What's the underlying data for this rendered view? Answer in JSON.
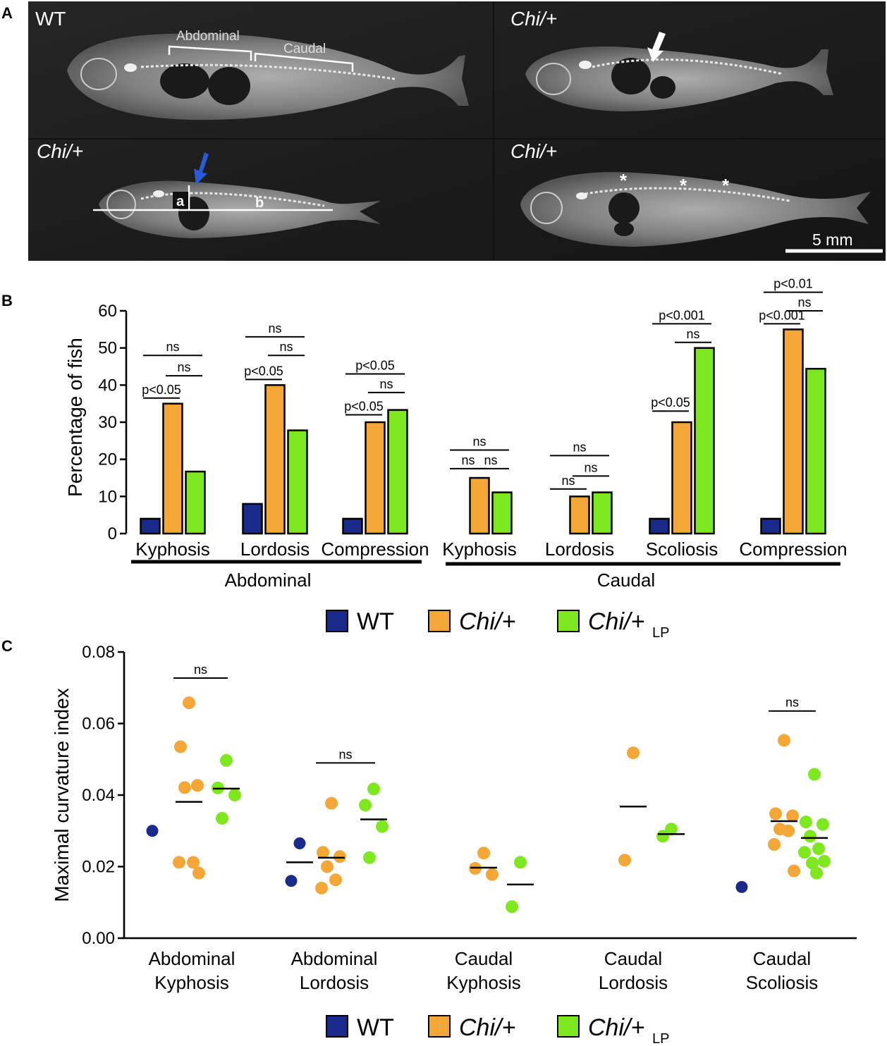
{
  "panels": {
    "a": "A",
    "b": "B",
    "c": "C"
  },
  "panel_a": {
    "images": [
      {
        "label": "WT"
      },
      {
        "label": "Chi/+"
      },
      {
        "label": "Chi/+"
      },
      {
        "label": "Chi/+"
      }
    ],
    "region_labels": {
      "abdominal": "Abdominal",
      "caudal": "Caudal"
    },
    "measure_labels": {
      "a": "a",
      "b": "b"
    },
    "asterisk": "*",
    "scale_bar": "5 mm"
  },
  "colors": {
    "wt": "#1a2a8a",
    "chi": "#f4a637",
    "chi_lp": "#7ee81f"
  },
  "legend": {
    "wt": "WT",
    "chi": "Chi/+",
    "chi_lp_main": "Chi/+",
    "chi_lp_sub": "LP"
  },
  "chart_data": [
    {
      "type": "bar",
      "ylabel": "Percentage of fish",
      "ylim": [
        0,
        60
      ],
      "yticks": [
        "0",
        "10",
        "20",
        "30",
        "40",
        "50",
        "60"
      ],
      "categories": [
        "Kyphosis",
        "Lordosis",
        "Compression",
        "Kyphosis",
        "Lordosis",
        "Scoliosis",
        "Compression"
      ],
      "groups": [
        {
          "label": "Abdominal"
        },
        {
          "label": "Caudal"
        }
      ],
      "series": [
        {
          "name": "WT",
          "values": [
            4,
            8,
            4,
            0,
            0,
            4,
            4
          ]
        },
        {
          "name": "Chi/+",
          "values": [
            35,
            40,
            30,
            15,
            10,
            30,
            55
          ]
        },
        {
          "name": "Chi/+LP",
          "values": [
            16.7,
            27.8,
            33.3,
            11.1,
            11.1,
            50,
            44.4
          ]
        }
      ],
      "annotations": [
        {
          "text": "ns",
          "cat": 0,
          "pair": "wt-lp",
          "y": 48
        },
        {
          "text": "ns",
          "cat": 0,
          "pair": "chi-lp",
          "y": 42.5
        },
        {
          "text": "p<0.05",
          "cat": 0,
          "pair": "wt-chi",
          "y": 36.5
        },
        {
          "text": "ns",
          "cat": 1,
          "pair": "wt-lp",
          "y": 53
        },
        {
          "text": "ns",
          "cat": 1,
          "pair": "chi-lp",
          "y": 48
        },
        {
          "text": "p<0.05",
          "cat": 1,
          "pair": "wt-chi",
          "y": 41.5
        },
        {
          "text": "p<0.05",
          "cat": 2,
          "pair": "wt-lp",
          "y": 43
        },
        {
          "text": "ns",
          "cat": 2,
          "pair": "chi-lp",
          "y": 38
        },
        {
          "text": "p<0.05",
          "cat": 2,
          "pair": "wt-chi",
          "y": 32
        },
        {
          "text": "ns",
          "cat": 3,
          "pair": "wt-lp",
          "y": 22.5
        },
        {
          "text": "ns",
          "cat": 3,
          "pair": "wt-chi",
          "y": 17.5
        },
        {
          "text": "ns",
          "cat": 3,
          "pair": "chi-lp",
          "y": 17.5
        },
        {
          "text": "ns",
          "cat": 4,
          "pair": "wt-lp",
          "y": 21
        },
        {
          "text": "ns",
          "cat": 4,
          "pair": "chi-lp",
          "y": 15.5
        },
        {
          "text": "ns",
          "cat": 4,
          "pair": "wt-chi",
          "y": 12
        },
        {
          "text": "p<0.001",
          "cat": 5,
          "pair": "wt-lp",
          "y": 56.5
        },
        {
          "text": "ns",
          "cat": 5,
          "pair": "chi-lp",
          "y": 51.5
        },
        {
          "text": "p<0.05",
          "cat": 5,
          "pair": "wt-chi",
          "y": 33
        },
        {
          "text": "p<0.01",
          "cat": 6,
          "pair": "wt-lp",
          "y": 65
        },
        {
          "text": "ns",
          "cat": 6,
          "pair": "chi-lp",
          "y": 60
        },
        {
          "text": "p<0.001",
          "cat": 6,
          "pair": "wt-chi",
          "y": 56.5
        }
      ]
    },
    {
      "type": "scatter",
      "ylabel": "Maximal curvature index",
      "ylim": [
        0,
        0.08
      ],
      "yticks": [
        "0.00",
        "0.02",
        "0.04",
        "0.06",
        "0.08"
      ],
      "categories": [
        {
          "line1": "Abdominal",
          "line2": "Kyphosis"
        },
        {
          "line1": "Abdominal",
          "line2": "Lordosis"
        },
        {
          "line1": "Caudal",
          "line2": "Kyphosis"
        },
        {
          "line1": "Caudal",
          "line2": "Lordosis"
        },
        {
          "line1": "Caudal",
          "line2": "Scoliosis"
        }
      ],
      "series": [
        {
          "name": "WT",
          "points": [
            {
              "cat": 0,
              "y": 0.03
            },
            {
              "cat": 1,
              "y": 0.0265
            },
            {
              "cat": 1,
              "y": 0.016
            },
            {
              "cat": 4,
              "y": 0.0143
            }
          ],
          "means": [
            {
              "cat": 1,
              "y": 0.0212
            }
          ]
        },
        {
          "name": "Chi/+",
          "points": [
            {
              "cat": 0,
              "y": 0.0658
            },
            {
              "cat": 0,
              "y": 0.0535
            },
            {
              "cat": 0,
              "y": 0.0427
            },
            {
              "cat": 0,
              "y": 0.0421
            },
            {
              "cat": 0,
              "y": 0.0212
            },
            {
              "cat": 0,
              "y": 0.0212
            },
            {
              "cat": 0,
              "y": 0.0182
            },
            {
              "cat": 1,
              "y": 0.0377
            },
            {
              "cat": 1,
              "y": 0.024
            },
            {
              "cat": 1,
              "y": 0.0228
            },
            {
              "cat": 1,
              "y": 0.02
            },
            {
              "cat": 1,
              "y": 0.0163
            },
            {
              "cat": 1,
              "y": 0.014
            },
            {
              "cat": 2,
              "y": 0.0238
            },
            {
              "cat": 2,
              "y": 0.0195
            },
            {
              "cat": 2,
              "y": 0.0178
            },
            {
              "cat": 3,
              "y": 0.0518
            },
            {
              "cat": 3,
              "y": 0.0218
            },
            {
              "cat": 4,
              "y": 0.0553
            },
            {
              "cat": 4,
              "y": 0.0348
            },
            {
              "cat": 4,
              "y": 0.0342
            },
            {
              "cat": 4,
              "y": 0.0305
            },
            {
              "cat": 4,
              "y": 0.03
            },
            {
              "cat": 4,
              "y": 0.0262
            },
            {
              "cat": 4,
              "y": 0.0188
            }
          ],
          "means": [
            {
              "cat": 0,
              "y": 0.0381
            },
            {
              "cat": 1,
              "y": 0.0225
            },
            {
              "cat": 2,
              "y": 0.0197
            },
            {
              "cat": 3,
              "y": 0.0368
            },
            {
              "cat": 4,
              "y": 0.0327
            }
          ]
        },
        {
          "name": "Chi/+LP",
          "points": [
            {
              "cat": 0,
              "y": 0.0497
            },
            {
              "cat": 0,
              "y": 0.042
            },
            {
              "cat": 0,
              "y": 0.04
            },
            {
              "cat": 0,
              "y": 0.0335
            },
            {
              "cat": 1,
              "y": 0.0417
            },
            {
              "cat": 1,
              "y": 0.0372
            },
            {
              "cat": 1,
              "y": 0.0312
            },
            {
              "cat": 1,
              "y": 0.0225
            },
            {
              "cat": 2,
              "y": 0.0212
            },
            {
              "cat": 2,
              "y": 0.0088
            },
            {
              "cat": 3,
              "y": 0.0305
            },
            {
              "cat": 3,
              "y": 0.0285
            },
            {
              "cat": 4,
              "y": 0.0458
            },
            {
              "cat": 4,
              "y": 0.0325
            },
            {
              "cat": 4,
              "y": 0.0318
            },
            {
              "cat": 4,
              "y": 0.0285
            },
            {
              "cat": 4,
              "y": 0.025
            },
            {
              "cat": 4,
              "y": 0.024
            },
            {
              "cat": 4,
              "y": 0.0215
            },
            {
              "cat": 4,
              "y": 0.021
            },
            {
              "cat": 4,
              "y": 0.0182
            }
          ],
          "means": [
            {
              "cat": 0,
              "y": 0.0418
            },
            {
              "cat": 1,
              "y": 0.0332
            },
            {
              "cat": 2,
              "y": 0.015
            },
            {
              "cat": 3,
              "y": 0.0291
            },
            {
              "cat": 4,
              "y": 0.028
            }
          ]
        }
      ],
      "annotations": [
        {
          "text": "ns",
          "cat": 0,
          "y": 0.0727
        },
        {
          "text": "ns",
          "cat": 1,
          "y": 0.049
        },
        {
          "text": "ns",
          "cat": 4,
          "y": 0.0635
        }
      ]
    }
  ]
}
